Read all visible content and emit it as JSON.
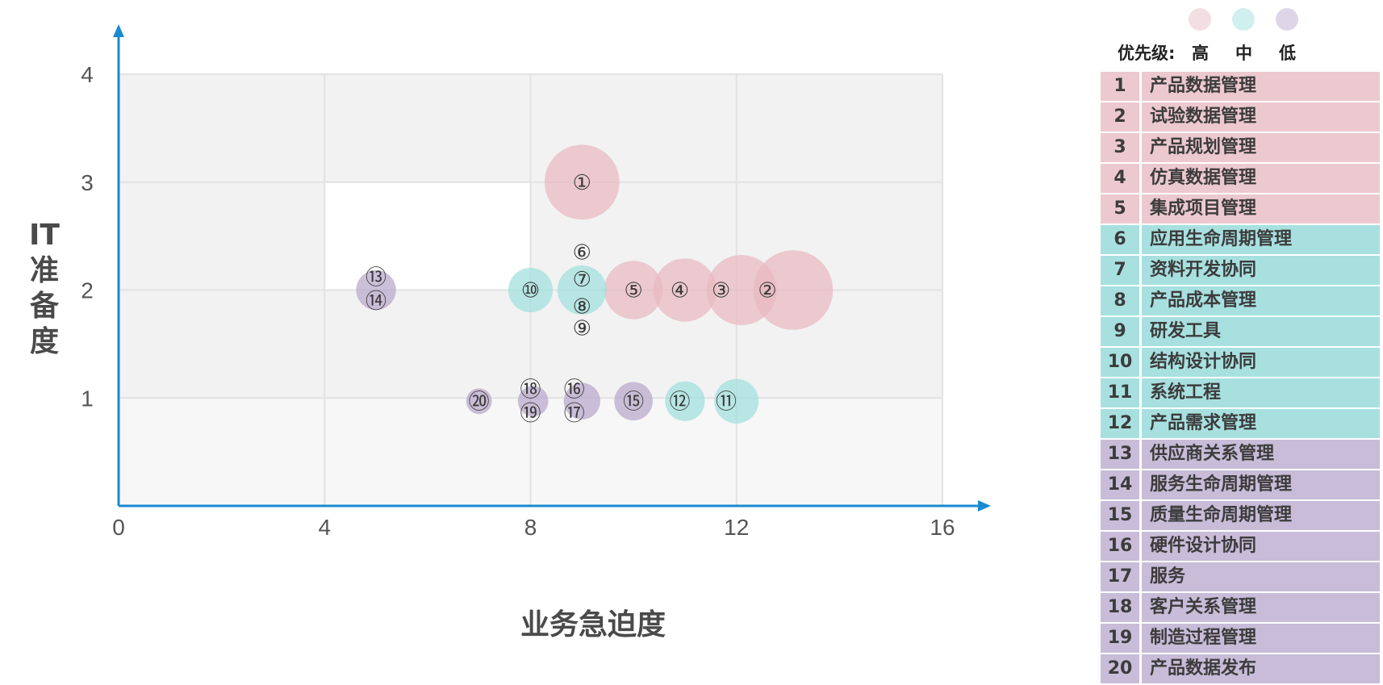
{
  "chart_data": {
    "type": "scatter",
    "subtype": "bubble",
    "xlabel": "业务急迫度",
    "ylabel": "IT准备度",
    "x_ticks": [
      "0",
      "4",
      "8",
      "12",
      "16"
    ],
    "y_ticks": [
      "1",
      "2",
      "3",
      "4"
    ],
    "xlim": [
      0,
      16
    ],
    "ylim": [
      0,
      4
    ],
    "grid": true,
    "legend": {
      "position": "top-right",
      "title": "优先级:",
      "items": [
        {
          "label": "高",
          "color": "#f3dfe3"
        },
        {
          "label": "中",
          "color": "#cff0ef"
        },
        {
          "label": "低",
          "color": "#ded6e8"
        }
      ]
    },
    "colors": {
      "high": "#e7b9bf",
      "mid": "#9fdfdc",
      "low": "#b7a6cb"
    },
    "points": [
      {
        "id": "①",
        "x": 9,
        "y": 3,
        "size": 1.6,
        "priority": "high"
      },
      {
        "id": "②",
        "x": 13.1,
        "y": 2,
        "size": 1.7,
        "priority": "high"
      },
      {
        "id": "③",
        "x": 12.1,
        "y": 2,
        "size": 1.5,
        "priority": "high"
      },
      {
        "id": "④",
        "x": 11,
        "y": 2,
        "size": 1.35,
        "priority": "high"
      },
      {
        "id": "⑤",
        "x": 10,
        "y": 2,
        "size": 1.25,
        "priority": "high"
      },
      {
        "id": "⑦",
        "x": 9,
        "y": 2,
        "size": 1.05,
        "priority": "mid"
      },
      {
        "id": "⑩",
        "x": 8,
        "y": 2,
        "size": 0.95,
        "priority": "mid"
      },
      {
        "id": "⑪",
        "x": 12,
        "y": 0.97,
        "size": 0.95,
        "priority": "mid"
      },
      {
        "id": "⑫",
        "x": 11,
        "y": 0.97,
        "size": 0.85,
        "priority": "mid"
      },
      {
        "id": "⑬",
        "x": 5,
        "y": 2,
        "size": 0.85,
        "priority": "low"
      },
      {
        "id": "⑮",
        "x": 10,
        "y": 0.97,
        "size": 0.82,
        "priority": "low"
      },
      {
        "id": "⑯",
        "x": 9,
        "y": 0.97,
        "size": 0.78,
        "priority": "low"
      },
      {
        "id": "⑱",
        "x": 8.05,
        "y": 0.97,
        "size": 0.65,
        "priority": "low"
      },
      {
        "id": "⑳",
        "x": 7,
        "y": 0.97,
        "size": 0.55,
        "priority": "low"
      }
    ],
    "labels": [
      {
        "text": "①",
        "x": 9,
        "y": 3
      },
      {
        "text": "②",
        "x": 12.6,
        "y": 2
      },
      {
        "text": "③",
        "x": 11.7,
        "y": 2
      },
      {
        "text": "④",
        "x": 10.9,
        "y": 2
      },
      {
        "text": "⑤",
        "x": 10,
        "y": 2
      },
      {
        "text": "⑥",
        "x": 9,
        "y": 2.35
      },
      {
        "text": "⑦",
        "x": 9,
        "y": 2.1
      },
      {
        "text": "⑧",
        "x": 9,
        "y": 1.85
      },
      {
        "text": "⑨",
        "x": 9,
        "y": 1.65
      },
      {
        "text": "⑩",
        "x": 8,
        "y": 2
      },
      {
        "text": "⑪",
        "x": 11.8,
        "y": 0.97
      },
      {
        "text": "⑫",
        "x": 10.9,
        "y": 0.97
      },
      {
        "text": "⑬",
        "x": 5,
        "y": 2.12
      },
      {
        "text": "⑭",
        "x": 5,
        "y": 1.9
      },
      {
        "text": "⑮",
        "x": 10,
        "y": 0.97
      },
      {
        "text": "⑯",
        "x": 8.85,
        "y": 1.08
      },
      {
        "text": "⑰",
        "x": 8.85,
        "y": 0.86
      },
      {
        "text": "⑱",
        "x": 8,
        "y": 1.08
      },
      {
        "text": "⑲",
        "x": 8,
        "y": 0.86
      },
      {
        "text": "⑳",
        "x": 7,
        "y": 0.97
      }
    ]
  },
  "table": [
    {
      "num": "1",
      "name": "产品数据管理",
      "priority": "high"
    },
    {
      "num": "2",
      "name": "试验数据管理",
      "priority": "high"
    },
    {
      "num": "3",
      "name": "产品规划管理",
      "priority": "high"
    },
    {
      "num": "4",
      "name": "仿真数据管理",
      "priority": "high"
    },
    {
      "num": "5",
      "name": "集成项目管理",
      "priority": "high"
    },
    {
      "num": "6",
      "name": "应用生命周期管理",
      "priority": "mid"
    },
    {
      "num": "7",
      "name": "资料开发协同",
      "priority": "mid"
    },
    {
      "num": "8",
      "name": "产品成本管理",
      "priority": "mid"
    },
    {
      "num": "9",
      "name": "研发工具",
      "priority": "mid"
    },
    {
      "num": "10",
      "name": "结构设计协同",
      "priority": "mid"
    },
    {
      "num": "11",
      "name": "系统工程",
      "priority": "mid"
    },
    {
      "num": "12",
      "name": "产品需求管理",
      "priority": "mid"
    },
    {
      "num": "13",
      "name": "供应商关系管理",
      "priority": "low"
    },
    {
      "num": "14",
      "name": "服务生命周期管理",
      "priority": "low"
    },
    {
      "num": "15",
      "name": "质量生命周期管理",
      "priority": "low"
    },
    {
      "num": "16",
      "name": "硬件设计协同",
      "priority": "low"
    },
    {
      "num": "17",
      "name": "服务",
      "priority": "low"
    },
    {
      "num": "18",
      "name": "客户关系管理",
      "priority": "low"
    },
    {
      "num": "19",
      "name": "制造过程管理",
      "priority": "low"
    },
    {
      "num": "20",
      "name": "产品数据发布",
      "priority": "low"
    }
  ]
}
